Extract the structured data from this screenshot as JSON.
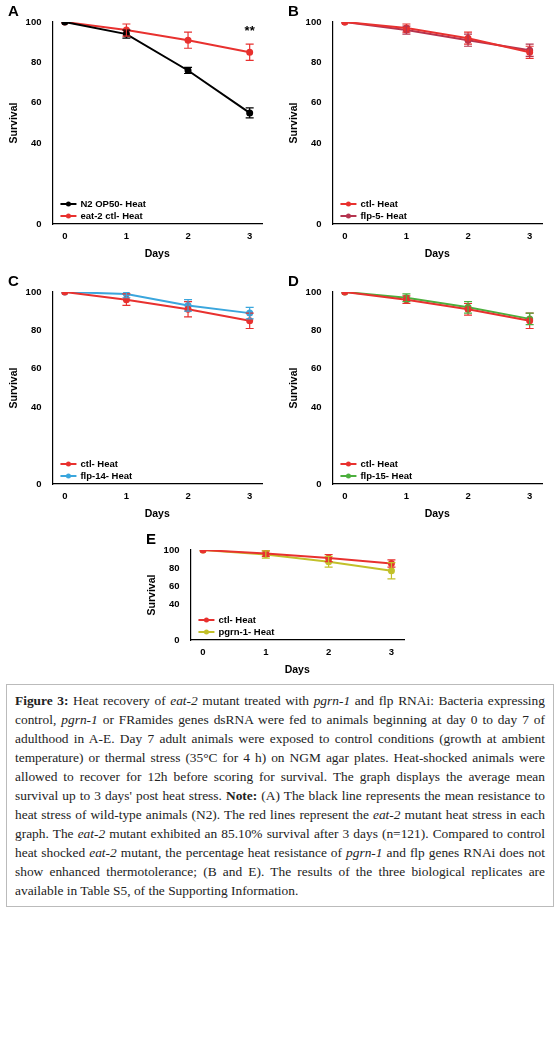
{
  "chart_data": [
    {
      "type": "line",
      "panel": "A",
      "x": [
        0,
        1,
        2,
        3
      ],
      "xlabel": "Days",
      "ylabel": "Survival",
      "xlim": [
        -0.2,
        3.2
      ],
      "xticks": [
        0,
        1,
        2,
        3
      ],
      "ylim": [
        0,
        100
      ],
      "yticks": [
        0,
        40,
        60,
        80,
        100
      ],
      "grid": false,
      "legend": "lower left",
      "series": [
        {
          "name": "N2 OP50- Heat",
          "color": "#000000",
          "values": [
            100,
            94,
            76,
            55
          ],
          "errors": [
            0,
            2,
            1.5,
            2.5
          ]
        },
        {
          "name": "eat-2 ctl- Heat",
          "color": "#e8312f",
          "values": [
            100,
            96,
            91,
            85
          ],
          "errors": [
            0,
            3,
            4,
            4
          ]
        }
      ],
      "annotations": [
        {
          "text": "**",
          "x": 3,
          "y": 92
        }
      ]
    },
    {
      "type": "line",
      "panel": "B",
      "x": [
        0,
        1,
        2,
        3
      ],
      "xlabel": "Days",
      "ylabel": "Survival",
      "xlim": [
        -0.2,
        3.2
      ],
      "xticks": [
        0,
        1,
        2,
        3
      ],
      "ylim": [
        0,
        100
      ],
      "yticks": [
        0,
        40,
        60,
        80,
        100
      ],
      "grid": false,
      "legend": "lower left",
      "series": [
        {
          "name": "ctl- Heat",
          "color": "#e8312f",
          "values": [
            100,
            97,
            92,
            85
          ],
          "errors": [
            0,
            2,
            3,
            3
          ]
        },
        {
          "name": "flp-5- Heat",
          "color": "#b5344f",
          "values": [
            100,
            96,
            91,
            86
          ],
          "errors": [
            0,
            2,
            3,
            3
          ]
        }
      ]
    },
    {
      "type": "line",
      "panel": "C",
      "x": [
        0,
        1,
        2,
        3
      ],
      "xlabel": "Days",
      "ylabel": "Survival",
      "xlim": [
        -0.2,
        3.2
      ],
      "xticks": [
        0,
        1,
        2,
        3
      ],
      "ylim": [
        0,
        100
      ],
      "yticks": [
        0,
        40,
        60,
        80,
        100
      ],
      "grid": false,
      "legend": "lower left",
      "series": [
        {
          "name": "ctl- Heat",
          "color": "#e8312f",
          "values": [
            100,
            96,
            91,
            85
          ],
          "errors": [
            0,
            3,
            4,
            4
          ]
        },
        {
          "name": "flp-14- Heat",
          "color": "#3aa6dd",
          "values": [
            100,
            99,
            93,
            89
          ],
          "errors": [
            0,
            2,
            3,
            3
          ]
        }
      ]
    },
    {
      "type": "line",
      "panel": "D",
      "x": [
        0,
        1,
        2,
        3
      ],
      "xlabel": "Days",
      "ylabel": "Survival",
      "xlim": [
        -0.2,
        3.2
      ],
      "xticks": [
        0,
        1,
        2,
        3
      ],
      "ylim": [
        0,
        100
      ],
      "yticks": [
        0,
        40,
        60,
        80,
        100
      ],
      "grid": false,
      "legend": "lower left",
      "series": [
        {
          "name": "ctl- Heat",
          "color": "#e8312f",
          "values": [
            100,
            96,
            91,
            85
          ],
          "errors": [
            0,
            2,
            3,
            4
          ]
        },
        {
          "name": "flp-15- Heat",
          "color": "#4caf3d",
          "values": [
            100,
            97,
            92,
            86
          ],
          "errors": [
            0,
            2,
            3,
            3
          ]
        }
      ]
    },
    {
      "type": "line",
      "panel": "E",
      "x": [
        0,
        1,
        2,
        3
      ],
      "xlabel": "Days",
      "ylabel": "Survival",
      "xlim": [
        -0.2,
        3.2
      ],
      "xticks": [
        0,
        1,
        2,
        3
      ],
      "ylim": [
        0,
        100
      ],
      "yticks": [
        0,
        40,
        60,
        80,
        100
      ],
      "grid": false,
      "legend": "lower left",
      "series": [
        {
          "name": "ctl- Heat",
          "color": "#e8312f",
          "values": [
            100,
            96,
            91,
            85
          ],
          "errors": [
            0,
            3,
            4,
            4
          ]
        },
        {
          "name": "pgrn-1- Heat",
          "color": "#c2c02a",
          "values": [
            100,
            95,
            87,
            77
          ],
          "errors": [
            0,
            4,
            6,
            9
          ]
        }
      ]
    }
  ],
  "caption": [
    {
      "text": "Figure 3:",
      "style": "bold"
    },
    {
      "text": " Heat recovery of ",
      "style": "normal"
    },
    {
      "text": "eat-2",
      "style": "italic"
    },
    {
      "text": " mutant treated with ",
      "style": "normal"
    },
    {
      "text": "pgrn-1",
      "style": "italic"
    },
    {
      "text": " and flp RNAi: Bacteria expressing control, ",
      "style": "normal"
    },
    {
      "text": "pgrn-1",
      "style": "italic"
    },
    {
      "text": " or FRamides genes dsRNA were fed to animals beginning at day 0 to day 7 of adulthood in A-E. Day 7 adult animals were exposed to control conditions (growth at ambient temperature) or thermal stress (35°C for 4 h) on NGM agar plates. Heat-shocked animals were allowed to recover for 12h before scoring for survival. The graph displays the average mean survival up to 3 days' post heat stress. ",
      "style": "normal"
    },
    {
      "text": "Note:",
      "style": "bold"
    },
    {
      "text": " (A) The black line represents the mean resistance to heat stress of wild-type animals (N2). The red lines represent the ",
      "style": "normal"
    },
    {
      "text": "eat-2",
      "style": "italic"
    },
    {
      "text": " mutant heat stress in each graph. The ",
      "style": "normal"
    },
    {
      "text": "eat-2",
      "style": "italic"
    },
    {
      "text": " mutant exhibited an 85.10% survival after 3 days (n=121). Compared to control heat shocked ",
      "style": "normal"
    },
    {
      "text": "eat-2",
      "style": "italic"
    },
    {
      "text": " mutant, the percentage heat resistance of ",
      "style": "normal"
    },
    {
      "text": "pgrn-1",
      "style": "italic"
    },
    {
      "text": " and flp genes RNAi does not show enhanced thermotolerance; (B and E). The results of the three biological replicates are available in Table S5, of the Supporting Information.",
      "style": "normal"
    }
  ]
}
